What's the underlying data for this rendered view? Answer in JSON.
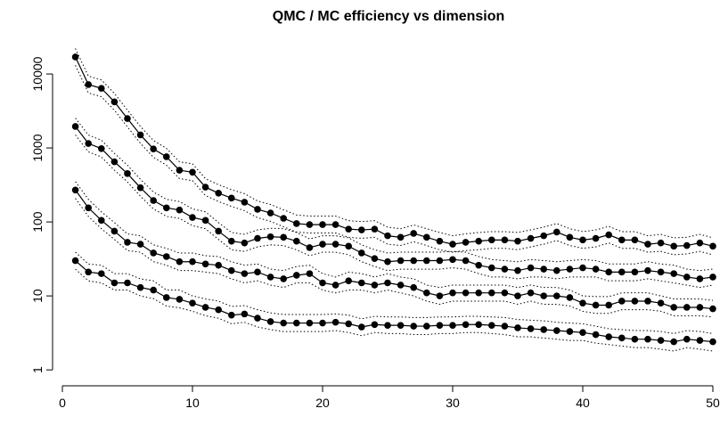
{
  "chart_data": {
    "type": "line",
    "title": "QMC / MC efficiency vs dimension",
    "log_y": true,
    "x": [
      1,
      2,
      3,
      4,
      5,
      6,
      7,
      8,
      9,
      10,
      11,
      12,
      13,
      14,
      15,
      16,
      17,
      18,
      19,
      20,
      21,
      22,
      23,
      24,
      25,
      26,
      27,
      28,
      29,
      30,
      31,
      32,
      33,
      34,
      35,
      36,
      37,
      38,
      39,
      40,
      41,
      42,
      43,
      44,
      45,
      46,
      47,
      48,
      49,
      50
    ],
    "xlim": [
      -1,
      51
    ],
    "xticks": [
      0,
      10,
      20,
      30,
      40,
      50
    ],
    "ylim": [
      0.7,
      25000
    ],
    "yticks": [
      1,
      10,
      100,
      1000,
      10000
    ],
    "series": [
      {
        "color": "#000000",
        "values": [
          17000,
          7200,
          6400,
          4200,
          2500,
          1500,
          970,
          760,
          500,
          470,
          295,
          245,
          210,
          185,
          148,
          132,
          112,
          95,
          92,
          92,
          92,
          80,
          78,
          80,
          65,
          62,
          70,
          62,
          55,
          50,
          53,
          55,
          57,
          57,
          55,
          60,
          65,
          73,
          62,
          57,
          60,
          67,
          57,
          57,
          50,
          52,
          47,
          48,
          52,
          47
        ],
        "upper": [
          22100,
          9360,
          8320,
          5460,
          3250,
          1950,
          1261,
          988,
          650,
          611,
          384,
          319,
          273,
          241,
          192,
          172,
          146,
          124,
          120,
          120,
          120,
          104,
          101,
          104,
          85,
          81,
          91,
          81,
          72,
          65,
          69,
          72,
          74,
          74,
          72,
          78,
          85,
          95,
          81,
          74,
          78,
          87,
          74,
          74,
          65,
          68,
          61,
          62,
          68,
          61
        ],
        "lower": [
          13090,
          5544,
          4928,
          3234,
          1925,
          1155,
          747,
          585,
          385,
          362,
          227,
          189,
          162,
          142,
          114,
          102,
          86,
          73,
          71,
          71,
          71,
          62,
          60,
          62,
          50,
          48,
          54,
          48,
          42,
          39,
          41,
          42,
          44,
          44,
          42,
          46,
          50,
          56,
          48,
          44,
          46,
          52,
          44,
          44,
          39,
          40,
          36,
          37,
          40,
          36
        ]
      },
      {
        "color": "#000000",
        "values": [
          1950,
          1150,
          980,
          650,
          450,
          290,
          195,
          155,
          145,
          115,
          105,
          75,
          55,
          52,
          60,
          63,
          62,
          55,
          45,
          50,
          50,
          47,
          38,
          32,
          29,
          30,
          30,
          30,
          30,
          31,
          30,
          26,
          24,
          23,
          22,
          24,
          23,
          22,
          23,
          24,
          23,
          21,
          21,
          21,
          22,
          21,
          20,
          18,
          17,
          18
        ],
        "upper": [
          2535,
          1495,
          1274,
          845,
          585,
          377,
          254,
          202,
          189,
          150,
          137,
          98,
          72,
          68,
          78,
          82,
          81,
          72,
          59,
          65,
          65,
          61,
          49,
          42,
          38,
          39,
          39,
          39,
          39,
          40,
          39,
          34,
          31,
          30,
          29,
          31,
          30,
          29,
          30,
          31,
          30,
          27,
          27,
          27,
          29,
          27,
          26,
          23,
          22,
          23
        ],
        "lower": [
          1502,
          886,
          755,
          501,
          347,
          223,
          150,
          119,
          112,
          89,
          81,
          58,
          42,
          40,
          46,
          49,
          48,
          42,
          35,
          39,
          39,
          36,
          29,
          25,
          22,
          23,
          23,
          23,
          23,
          24,
          23,
          20,
          18,
          18,
          17,
          18,
          18,
          17,
          18,
          18,
          18,
          16,
          16,
          16,
          17,
          16,
          15,
          14,
          13,
          14
        ]
      },
      {
        "color": "#000000",
        "values": [
          270,
          155,
          105,
          75,
          53,
          50,
          38,
          34,
          29,
          29,
          27,
          26,
          22,
          20,
          21,
          18,
          17,
          19,
          20,
          15,
          14,
          16,
          15,
          14,
          15,
          14,
          13,
          11,
          10,
          11,
          11,
          11,
          11,
          11,
          10,
          11,
          10,
          10,
          9.5,
          8,
          7.5,
          7.5,
          8.5,
          8.5,
          8.5,
          8,
          7,
          7,
          7,
          6.7
        ],
        "upper": [
          351,
          202,
          137,
          98,
          69,
          65,
          49,
          44,
          38,
          38,
          35,
          34,
          29,
          26,
          27,
          23,
          22,
          25,
          26,
          20,
          18,
          21,
          20,
          18,
          20,
          18,
          17,
          14,
          13,
          14,
          14,
          14,
          14,
          14,
          13,
          14,
          13,
          13,
          12,
          10,
          9.8,
          9.8,
          11,
          11,
          11,
          10,
          9.1,
          9.1,
          9.1,
          8.7
        ],
        "lower": [
          208,
          119,
          81,
          58,
          41,
          39,
          29,
          26,
          22,
          22,
          21,
          20,
          17,
          15,
          16,
          14,
          13,
          15,
          15,
          12,
          11,
          12,
          12,
          11,
          12,
          11,
          10,
          8.5,
          7.7,
          8.5,
          8.5,
          8.5,
          8.5,
          8.5,
          7.7,
          8.5,
          7.7,
          7.7,
          7.3,
          6.2,
          5.8,
          5.8,
          6.5,
          6.5,
          6.5,
          6.2,
          5.4,
          5.4,
          5.4,
          5.2
        ]
      },
      {
        "color": "#000000",
        "values": [
          30,
          21,
          20,
          15,
          15,
          13,
          12,
          9.5,
          9,
          8,
          7,
          6.5,
          5.5,
          5.7,
          5,
          4.5,
          4.3,
          4.3,
          4.3,
          4.3,
          4.4,
          4.2,
          3.8,
          4.1,
          4,
          4,
          3.9,
          3.9,
          4,
          4,
          4.1,
          4.1,
          4,
          3.9,
          3.7,
          3.6,
          3.5,
          3.4,
          3.3,
          3.2,
          3,
          2.8,
          2.7,
          2.6,
          2.6,
          2.5,
          2.4,
          2.6,
          2.5,
          2.4
        ],
        "upper": [
          39,
          27,
          26,
          20,
          20,
          17,
          16,
          12,
          12,
          10,
          9.1,
          8.5,
          7.2,
          7.4,
          6.5,
          5.9,
          5.6,
          5.6,
          5.6,
          5.6,
          5.7,
          5.5,
          4.9,
          5.3,
          5.2,
          5.2,
          5.1,
          5.1,
          5.2,
          5.2,
          5.3,
          5.3,
          5.2,
          5.1,
          4.8,
          4.7,
          4.6,
          4.4,
          4.3,
          4.2,
          3.9,
          3.6,
          3.5,
          3.4,
          3.4,
          3.3,
          3.1,
          3.4,
          3.3,
          3.1
        ],
        "lower": [
          23,
          16,
          15,
          12,
          12,
          10,
          9.2,
          7.3,
          6.9,
          6.2,
          5.4,
          5,
          4.2,
          4.4,
          3.8,
          3.5,
          3.3,
          3.3,
          3.3,
          3.3,
          3.4,
          3.2,
          2.9,
          3.2,
          3.1,
          3.1,
          3,
          3,
          3.1,
          3.1,
          3.2,
          3.2,
          3.1,
          3,
          2.8,
          2.8,
          2.7,
          2.6,
          2.5,
          2.5,
          2.3,
          2.2,
          2.1,
          2,
          2,
          1.9,
          1.8,
          2,
          1.9,
          1.8
        ]
      }
    ]
  }
}
